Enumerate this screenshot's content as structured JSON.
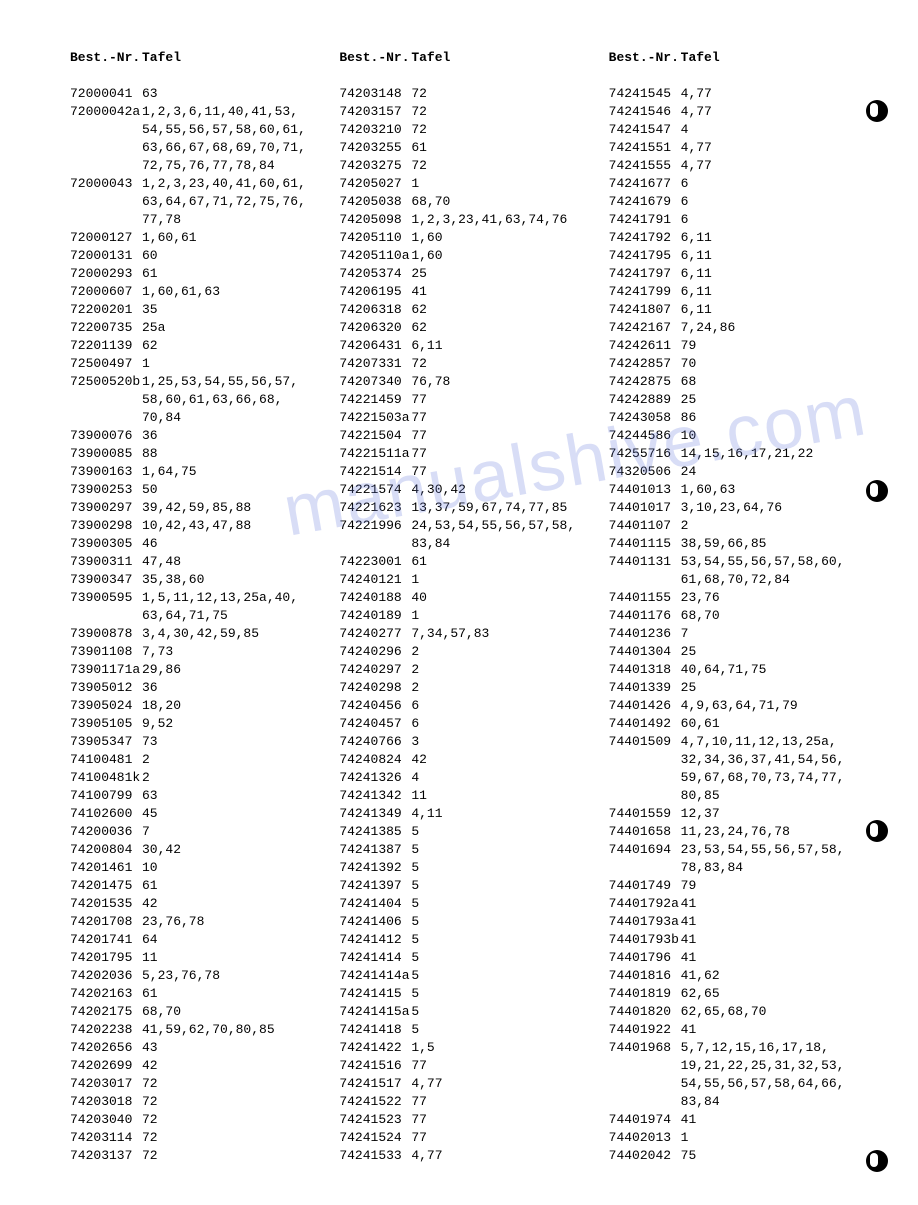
{
  "headers": {
    "num": "Best.-Nr.",
    "tafel": "Tafel"
  },
  "watermark": "manualshive.com",
  "columns": [
    {
      "rows": [
        {
          "num": "72000041",
          "tafel": "63"
        },
        {
          "num": "72000042a",
          "tafel": "1,2,3,6,11,40,41,53,"
        },
        {
          "num": "",
          "tafel": "54,55,56,57,58,60,61,"
        },
        {
          "num": "",
          "tafel": "63,66,67,68,69,70,71,"
        },
        {
          "num": "",
          "tafel": "72,75,76,77,78,84"
        },
        {
          "num": "72000043",
          "tafel": "1,2,3,23,40,41,60,61,"
        },
        {
          "num": "",
          "tafel": "63,64,67,71,72,75,76,"
        },
        {
          "num": "",
          "tafel": "77,78"
        },
        {
          "num": "72000127",
          "tafel": "1,60,61"
        },
        {
          "num": "72000131",
          "tafel": "60"
        },
        {
          "num": "72000293",
          "tafel": "61"
        },
        {
          "num": "72000607",
          "tafel": "1,60,61,63"
        },
        {
          "num": "72200201",
          "tafel": "35"
        },
        {
          "num": "72200735",
          "tafel": "25a"
        },
        {
          "num": "72201139",
          "tafel": "62"
        },
        {
          "num": "72500497",
          "tafel": "1"
        },
        {
          "num": "72500520b",
          "tafel": "1,25,53,54,55,56,57,"
        },
        {
          "num": "",
          "tafel": "58,60,61,63,66,68,"
        },
        {
          "num": "",
          "tafel": "70,84"
        },
        {
          "num": "73900076",
          "tafel": "36"
        },
        {
          "num": "73900085",
          "tafel": "88"
        },
        {
          "num": "73900163",
          "tafel": "1,64,75"
        },
        {
          "num": "73900253",
          "tafel": "50"
        },
        {
          "num": "73900297",
          "tafel": "39,42,59,85,88"
        },
        {
          "num": "73900298",
          "tafel": "10,42,43,47,88"
        },
        {
          "num": "73900305",
          "tafel": "46"
        },
        {
          "num": "73900311",
          "tafel": "47,48"
        },
        {
          "num": "73900347",
          "tafel": "35,38,60"
        },
        {
          "num": "73900595",
          "tafel": "1,5,11,12,13,25a,40,"
        },
        {
          "num": "",
          "tafel": "63,64,71,75"
        },
        {
          "num": "73900878",
          "tafel": "3,4,30,42,59,85"
        },
        {
          "num": "73901108",
          "tafel": "7,73"
        },
        {
          "num": "73901171a",
          "tafel": "29,86"
        },
        {
          "num": "73905012",
          "tafel": "36"
        },
        {
          "num": "73905024",
          "tafel": "18,20"
        },
        {
          "num": "73905105",
          "tafel": "9,52"
        },
        {
          "num": "73905347",
          "tafel": "73"
        },
        {
          "num": "74100481",
          "tafel": "2"
        },
        {
          "num": "74100481k",
          "tafel": "2"
        },
        {
          "num": "74100799",
          "tafel": "63"
        },
        {
          "num": "74102600",
          "tafel": "45"
        },
        {
          "num": "74200036",
          "tafel": "7"
        },
        {
          "num": "74200804",
          "tafel": "30,42"
        },
        {
          "num": "74201461",
          "tafel": "10"
        },
        {
          "num": "74201475",
          "tafel": "61"
        },
        {
          "num": "74201535",
          "tafel": "42"
        },
        {
          "num": "74201708",
          "tafel": "23,76,78"
        },
        {
          "num": "74201741",
          "tafel": "64"
        },
        {
          "num": "74201795",
          "tafel": "11"
        },
        {
          "num": "74202036",
          "tafel": "5,23,76,78"
        },
        {
          "num": "74202163",
          "tafel": "61"
        },
        {
          "num": "74202175",
          "tafel": "68,70"
        },
        {
          "num": "74202238",
          "tafel": "41,59,62,70,80,85"
        },
        {
          "num": "74202656",
          "tafel": "43"
        },
        {
          "num": "74202699",
          "tafel": "42"
        },
        {
          "num": "74203017",
          "tafel": "72"
        },
        {
          "num": "74203018",
          "tafel": "72"
        },
        {
          "num": "74203040",
          "tafel": "72"
        },
        {
          "num": "74203114",
          "tafel": "72"
        },
        {
          "num": "74203137",
          "tafel": "72"
        }
      ]
    },
    {
      "rows": [
        {
          "num": "74203148",
          "tafel": "72"
        },
        {
          "num": "74203157",
          "tafel": "72"
        },
        {
          "num": "74203210",
          "tafel": "72"
        },
        {
          "num": "74203255",
          "tafel": "61"
        },
        {
          "num": "74203275",
          "tafel": "72"
        },
        {
          "num": "74205027",
          "tafel": "1"
        },
        {
          "num": "74205038",
          "tafel": "68,70"
        },
        {
          "num": "74205098",
          "tafel": "1,2,3,23,41,63,74,76"
        },
        {
          "num": "74205110",
          "tafel": "1,60"
        },
        {
          "num": "74205110a",
          "tafel": "1,60"
        },
        {
          "num": "74205374",
          "tafel": "25"
        },
        {
          "num": "74206195",
          "tafel": "41"
        },
        {
          "num": "74206318",
          "tafel": "62"
        },
        {
          "num": "74206320",
          "tafel": "62"
        },
        {
          "num": "74206431",
          "tafel": "6,11"
        },
        {
          "num": "74207331",
          "tafel": "72"
        },
        {
          "num": "74207340",
          "tafel": "76,78"
        },
        {
          "num": "74221459",
          "tafel": "77"
        },
        {
          "num": "74221503a",
          "tafel": "77"
        },
        {
          "num": "74221504",
          "tafel": "77"
        },
        {
          "num": "74221511a",
          "tafel": "77"
        },
        {
          "num": "74221514",
          "tafel": "77"
        },
        {
          "num": "74221574",
          "tafel": "4,30,42"
        },
        {
          "num": "74221623",
          "tafel": "13,37,59,67,74,77,85"
        },
        {
          "num": "74221996",
          "tafel": "24,53,54,55,56,57,58,"
        },
        {
          "num": "",
          "tafel": "83,84"
        },
        {
          "num": "74223001",
          "tafel": "61"
        },
        {
          "num": "74240121",
          "tafel": "1"
        },
        {
          "num": "74240188",
          "tafel": "40"
        },
        {
          "num": "74240189",
          "tafel": "1"
        },
        {
          "num": "74240277",
          "tafel": "7,34,57,83"
        },
        {
          "num": "74240296",
          "tafel": "2"
        },
        {
          "num": "74240297",
          "tafel": "2"
        },
        {
          "num": "74240298",
          "tafel": "2"
        },
        {
          "num": "74240456",
          "tafel": "6"
        },
        {
          "num": "74240457",
          "tafel": "6"
        },
        {
          "num": "74240766",
          "tafel": "3"
        },
        {
          "num": "74240824",
          "tafel": "42"
        },
        {
          "num": "74241326",
          "tafel": "4"
        },
        {
          "num": "74241342",
          "tafel": "11"
        },
        {
          "num": "74241349",
          "tafel": "4,11"
        },
        {
          "num": "74241385",
          "tafel": "5"
        },
        {
          "num": "74241387",
          "tafel": "5"
        },
        {
          "num": "74241392",
          "tafel": "5"
        },
        {
          "num": "74241397",
          "tafel": "5"
        },
        {
          "num": "74241404",
          "tafel": "5"
        },
        {
          "num": "74241406",
          "tafel": "5"
        },
        {
          "num": "74241412",
          "tafel": "5"
        },
        {
          "num": "74241414",
          "tafel": "5"
        },
        {
          "num": "74241414a",
          "tafel": "5"
        },
        {
          "num": "74241415",
          "tafel": "5"
        },
        {
          "num": "74241415a",
          "tafel": "5"
        },
        {
          "num": "74241418",
          "tafel": "5"
        },
        {
          "num": "74241422",
          "tafel": "1,5"
        },
        {
          "num": "74241516",
          "tafel": "77"
        },
        {
          "num": "74241517",
          "tafel": "4,77"
        },
        {
          "num": "74241522",
          "tafel": "77"
        },
        {
          "num": "74241523",
          "tafel": "77"
        },
        {
          "num": "74241524",
          "tafel": "77"
        },
        {
          "num": "74241533",
          "tafel": "4,77"
        }
      ]
    },
    {
      "rows": [
        {
          "num": "74241545",
          "tafel": "4,77"
        },
        {
          "num": "74241546",
          "tafel": "4,77"
        },
        {
          "num": "74241547",
          "tafel": "4"
        },
        {
          "num": "74241551",
          "tafel": "4,77"
        },
        {
          "num": "74241555",
          "tafel": "4,77"
        },
        {
          "num": "74241677",
          "tafel": "6"
        },
        {
          "num": "74241679",
          "tafel": "6"
        },
        {
          "num": "74241791",
          "tafel": "6"
        },
        {
          "num": "74241792",
          "tafel": "6,11"
        },
        {
          "num": "74241795",
          "tafel": "6,11"
        },
        {
          "num": "74241797",
          "tafel": "6,11"
        },
        {
          "num": "74241799",
          "tafel": "6,11"
        },
        {
          "num": "74241807",
          "tafel": "6,11"
        },
        {
          "num": "74242167",
          "tafel": "7,24,86"
        },
        {
          "num": "74242611",
          "tafel": "79"
        },
        {
          "num": "74242857",
          "tafel": "70"
        },
        {
          "num": "74242875",
          "tafel": "68"
        },
        {
          "num": "74242889",
          "tafel": "25"
        },
        {
          "num": "74243058",
          "tafel": "86"
        },
        {
          "num": "74244586",
          "tafel": "10"
        },
        {
          "num": "74255716",
          "tafel": "14,15,16,17,21,22"
        },
        {
          "num": "74320506",
          "tafel": "24"
        },
        {
          "num": "74401013",
          "tafel": "1,60,63"
        },
        {
          "num": "74401017",
          "tafel": "3,10,23,64,76"
        },
        {
          "num": "74401107",
          "tafel": "2"
        },
        {
          "num": "74401115",
          "tafel": "38,59,66,85"
        },
        {
          "num": "74401131",
          "tafel": "53,54,55,56,57,58,60,"
        },
        {
          "num": "",
          "tafel": "61,68,70,72,84"
        },
        {
          "num": "74401155",
          "tafel": "23,76"
        },
        {
          "num": "74401176",
          "tafel": "68,70"
        },
        {
          "num": "74401236",
          "tafel": "7"
        },
        {
          "num": "74401304",
          "tafel": "25"
        },
        {
          "num": "74401318",
          "tafel": "40,64,71,75"
        },
        {
          "num": "74401339",
          "tafel": "25"
        },
        {
          "num": "74401426",
          "tafel": "4,9,63,64,71,79"
        },
        {
          "num": "74401492",
          "tafel": "60,61"
        },
        {
          "num": "74401509",
          "tafel": "4,7,10,11,12,13,25a,"
        },
        {
          "num": "",
          "tafel": "32,34,36,37,41,54,56,"
        },
        {
          "num": "",
          "tafel": "59,67,68,70,73,74,77,"
        },
        {
          "num": "",
          "tafel": "80,85"
        },
        {
          "num": "74401559",
          "tafel": "12,37"
        },
        {
          "num": "74401658",
          "tafel": "11,23,24,76,78"
        },
        {
          "num": "74401694",
          "tafel": "23,53,54,55,56,57,58,"
        },
        {
          "num": "",
          "tafel": "78,83,84"
        },
        {
          "num": "74401749",
          "tafel": "79"
        },
        {
          "num": "74401792a",
          "tafel": "41"
        },
        {
          "num": "74401793a",
          "tafel": "41"
        },
        {
          "num": "74401793b",
          "tafel": "41"
        },
        {
          "num": "74401796",
          "tafel": "41"
        },
        {
          "num": "74401816",
          "tafel": "41,62"
        },
        {
          "num": "74401819",
          "tafel": "62,65"
        },
        {
          "num": "74401820",
          "tafel": "62,65,68,70"
        },
        {
          "num": "74401922",
          "tafel": "41"
        },
        {
          "num": "74401968",
          "tafel": "5,7,12,15,16,17,18,"
        },
        {
          "num": "",
          "tafel": "19,21,22,25,31,32,53,"
        },
        {
          "num": "",
          "tafel": "54,55,56,57,58,64,66,"
        },
        {
          "num": "",
          "tafel": "83,84"
        },
        {
          "num": "74401974",
          "tafel": "41"
        },
        {
          "num": "74402013",
          "tafel": "1"
        },
        {
          "num": "74402042",
          "tafel": "75"
        }
      ]
    }
  ]
}
